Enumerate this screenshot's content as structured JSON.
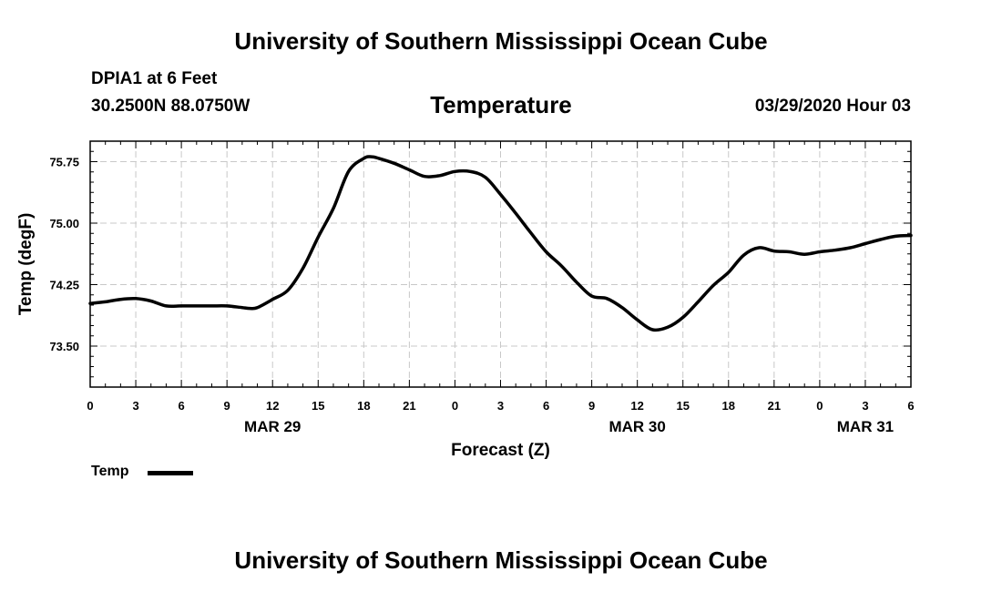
{
  "header": {
    "title": "University of Southern Mississippi Ocean Cube",
    "station": "DPIA1 at 6 Feet",
    "coords": "30.2500N 88.0750W",
    "variable": "Temperature",
    "datetime": "03/29/2020 Hour 03"
  },
  "footer": {
    "title": "University of Southern Mississippi Ocean Cube"
  },
  "legend": {
    "label": "Temp"
  },
  "chart_data": {
    "type": "line",
    "title": "Temperature",
    "xlabel": "Forecast (Z)",
    "ylabel": "Temp (degF)",
    "x_unit": "hours from 03/29/2020 00Z",
    "xlim": [
      0,
      54
    ],
    "ylim": [
      73.0,
      76.0
    ],
    "grid": true,
    "legend_position": "bottom-left",
    "y_ticks": [
      "73.50",
      "74.25",
      "75.00",
      "75.75"
    ],
    "y_tick_values": [
      73.5,
      74.25,
      75.0,
      75.75
    ],
    "x_ticks": [
      "0",
      "3",
      "6",
      "9",
      "12",
      "15",
      "18",
      "21",
      "0",
      "3",
      "6",
      "9",
      "12",
      "15",
      "18",
      "21",
      "0",
      "3",
      "6"
    ],
    "x_tick_values": [
      0,
      3,
      6,
      9,
      12,
      15,
      18,
      21,
      24,
      27,
      30,
      33,
      36,
      39,
      42,
      45,
      48,
      51,
      54
    ],
    "day_labels": [
      "MAR 29",
      "MAR 30",
      "MAR 31"
    ],
    "day_label_hours": [
      12,
      36,
      51
    ],
    "series": [
      {
        "name": "Temp",
        "color": "#000000",
        "x": [
          0,
          1,
          2,
          3,
          4,
          5,
          6,
          7,
          8,
          9,
          10,
          10.5,
          11,
          12,
          13,
          14,
          15,
          16,
          17,
          18,
          18.5,
          19,
          20,
          21,
          22,
          23,
          24,
          25,
          26,
          27,
          28,
          29,
          30,
          31,
          32,
          33,
          34,
          35,
          36,
          37,
          38,
          39,
          40,
          41,
          42,
          43,
          44,
          45,
          46,
          47,
          48,
          49,
          50,
          51,
          52,
          53,
          54
        ],
        "values": [
          74.02,
          74.04,
          74.07,
          74.08,
          74.05,
          73.99,
          73.99,
          73.99,
          73.99,
          73.99,
          73.97,
          73.96,
          73.97,
          74.07,
          74.18,
          74.45,
          74.83,
          75.18,
          75.63,
          75.79,
          75.81,
          75.79,
          75.73,
          75.65,
          75.57,
          75.58,
          75.63,
          75.63,
          75.56,
          75.35,
          75.12,
          74.88,
          74.65,
          74.48,
          74.28,
          74.11,
          74.08,
          73.97,
          73.82,
          73.7,
          73.73,
          73.85,
          74.04,
          74.24,
          74.4,
          74.61,
          74.7,
          74.66,
          74.65,
          74.62,
          74.65,
          74.67,
          74.7,
          74.75,
          74.8,
          74.84,
          74.85
        ]
      }
    ]
  }
}
